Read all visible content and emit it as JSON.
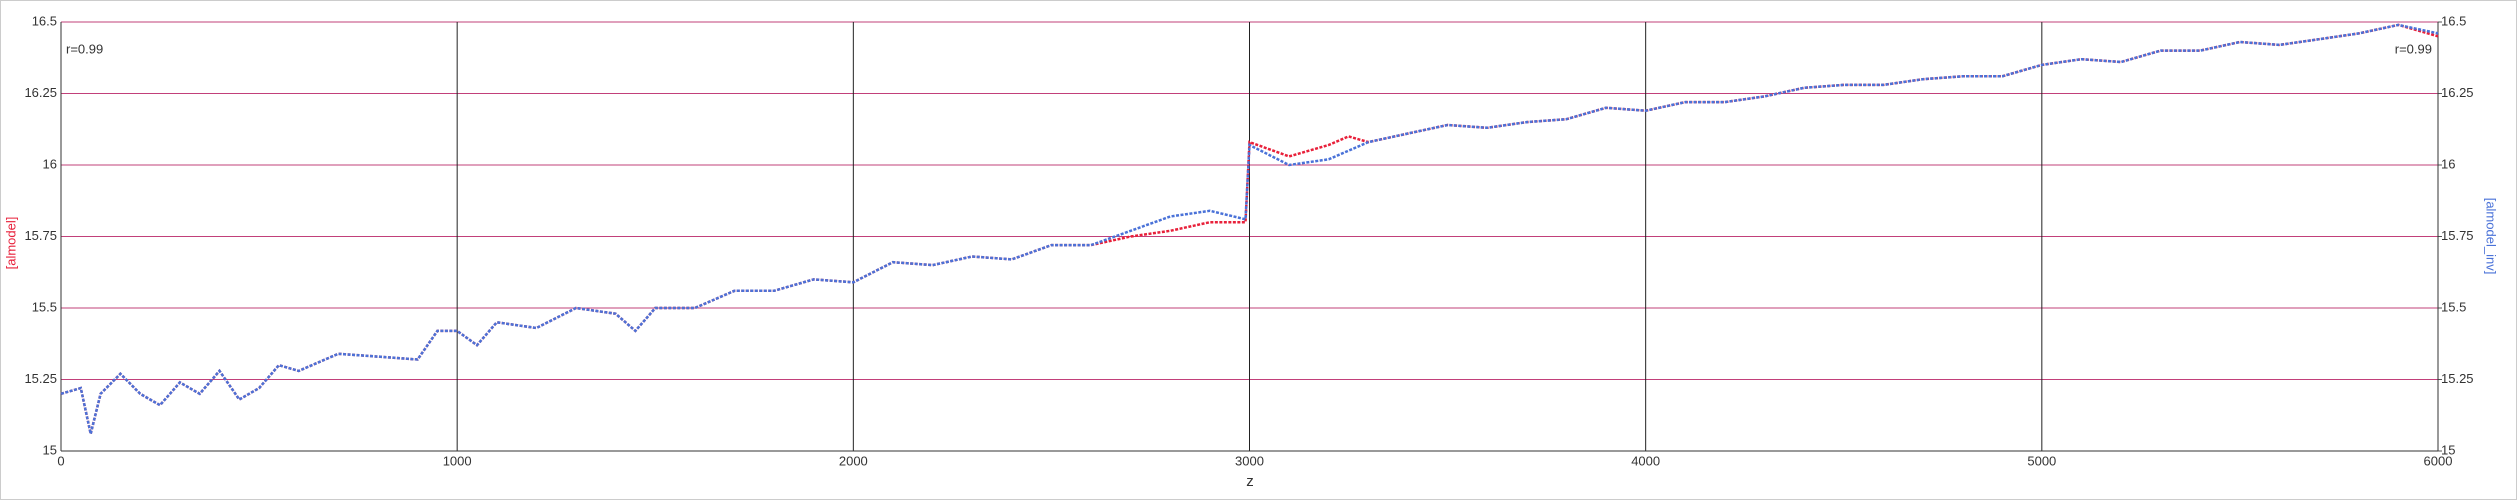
{
  "chart_data": {
    "type": "line",
    "xlabel": "z",
    "ylabel": "[almodel]",
    "y2label": "[almodel_inv]",
    "annotations": [
      "r=0.99",
      "r=0.99"
    ],
    "x": [
      0,
      50,
      75,
      100,
      150,
      200,
      250,
      300,
      350,
      400,
      450,
      500,
      550,
      600,
      700,
      800,
      900,
      950,
      1000,
      1050,
      1100,
      1200,
      1300,
      1400,
      1450,
      1500,
      1600,
      1700,
      1800,
      1900,
      2000,
      2100,
      2200,
      2300,
      2400,
      2500,
      2600,
      2700,
      2800,
      2900,
      2990,
      3000,
      3100,
      3200,
      3250,
      3300,
      3400,
      3500,
      3600,
      3700,
      3800,
      3900,
      4000,
      4100,
      4200,
      4300,
      4400,
      4500,
      4600,
      4700,
      4800,
      4900,
      5000,
      5100,
      5200,
      5300,
      5400,
      5500,
      5600,
      5700,
      5800,
      5900,
      6000
    ],
    "series": [
      {
        "name": "[almodel]",
        "color": "#e8203a",
        "values": [
          15.2,
          15.22,
          15.06,
          15.2,
          15.27,
          15.2,
          15.16,
          15.24,
          15.2,
          15.28,
          15.18,
          15.22,
          15.3,
          15.28,
          15.34,
          15.33,
          15.32,
          15.42,
          15.42,
          15.37,
          15.45,
          15.43,
          15.5,
          15.48,
          15.42,
          15.5,
          15.5,
          15.56,
          15.56,
          15.6,
          15.59,
          15.66,
          15.65,
          15.68,
          15.67,
          15.72,
          15.72,
          15.75,
          15.77,
          15.8,
          15.8,
          16.08,
          16.03,
          16.07,
          16.1,
          16.08,
          16.11,
          16.14,
          16.13,
          16.15,
          16.16,
          16.2,
          16.19,
          16.22,
          16.22,
          16.24,
          16.27,
          16.28,
          16.28,
          16.3,
          16.31,
          16.31,
          16.35,
          16.37,
          16.36,
          16.4,
          16.4,
          16.43,
          16.42,
          16.44,
          16.46,
          16.49,
          16.45
        ]
      },
      {
        "name": "[almodel_inv]",
        "color": "#4a72d8",
        "axis": "y2",
        "values": [
          15.2,
          15.22,
          15.06,
          15.2,
          15.27,
          15.2,
          15.16,
          15.24,
          15.2,
          15.28,
          15.18,
          15.22,
          15.3,
          15.28,
          15.34,
          15.33,
          15.32,
          15.42,
          15.42,
          15.37,
          15.45,
          15.43,
          15.5,
          15.48,
          15.42,
          15.5,
          15.5,
          15.56,
          15.56,
          15.6,
          15.59,
          15.66,
          15.65,
          15.68,
          15.67,
          15.72,
          15.72,
          15.77,
          15.82,
          15.84,
          15.81,
          16.07,
          16.0,
          16.02,
          16.05,
          16.08,
          16.11,
          16.14,
          16.13,
          16.15,
          16.16,
          16.2,
          16.19,
          16.22,
          16.22,
          16.24,
          16.27,
          16.28,
          16.28,
          16.3,
          16.31,
          16.31,
          16.35,
          16.37,
          16.36,
          16.4,
          16.4,
          16.43,
          16.42,
          16.44,
          16.46,
          16.49,
          16.46
        ]
      }
    ],
    "xlim": [
      0,
      6000
    ],
    "xticks": [
      0,
      1000,
      2000,
      3000,
      4000,
      5000,
      6000
    ],
    "ylim": [
      15,
      16.5
    ],
    "yticks": [
      15,
      15.25,
      15.5,
      15.75,
      16,
      16.25,
      16.5
    ],
    "y2lim": [
      15,
      16.5
    ],
    "y2ticks": [
      15,
      15.25,
      15.5,
      15.75,
      16,
      16.25,
      16.5
    ],
    "grid": true
  }
}
